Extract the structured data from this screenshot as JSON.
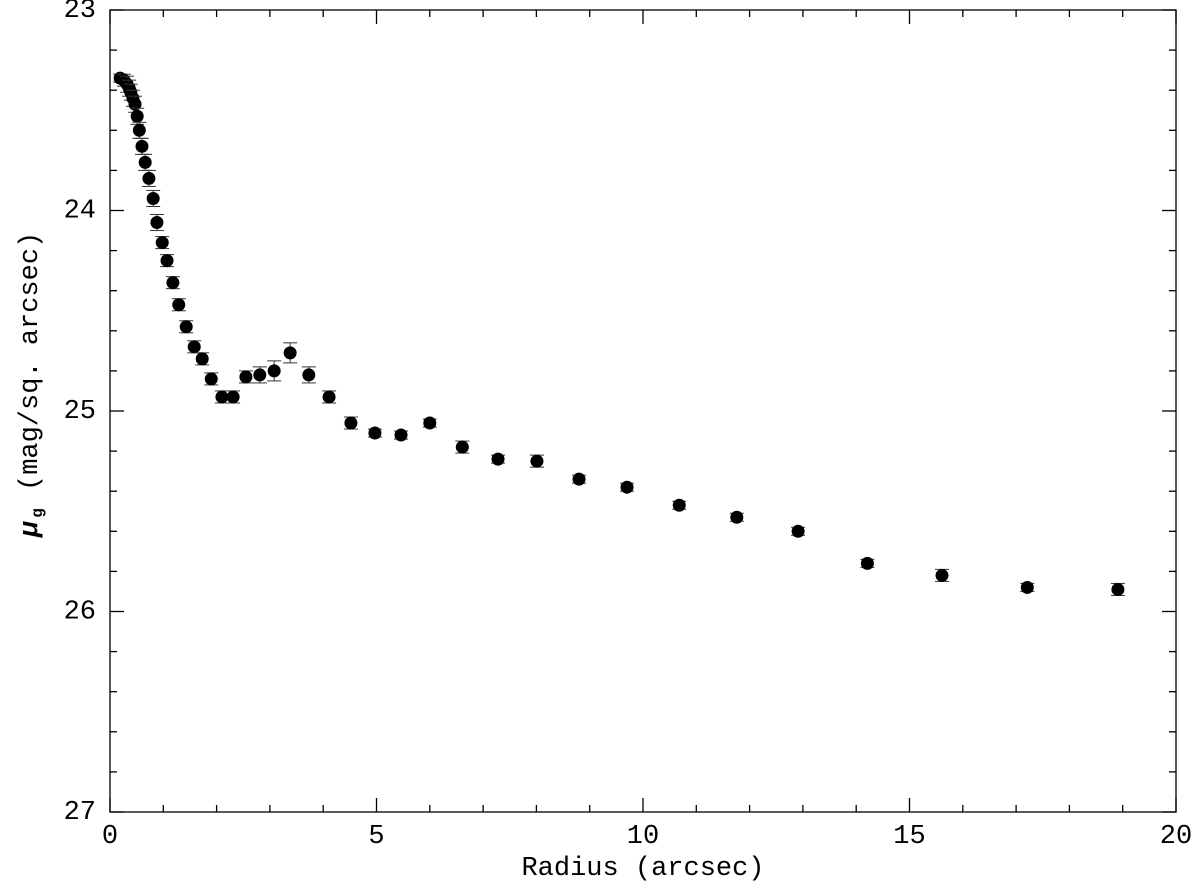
{
  "chart_data": {
    "type": "scatter",
    "xlabel": "Radius (arcsec)",
    "ylabel": {
      "symbol": "μ",
      "subscript": "g",
      "unit": "(mag/sq. arcsec)"
    },
    "xlim": [
      0,
      20
    ],
    "ylim": [
      27,
      23
    ],
    "xticks": [
      0,
      5,
      10,
      15,
      20
    ],
    "yticks": [
      23,
      24,
      25,
      26,
      27
    ],
    "xminor_ticks": [
      1,
      2,
      3,
      4,
      6,
      7,
      8,
      9,
      11,
      12,
      13,
      14,
      16,
      17,
      18,
      19
    ],
    "yminor_ticks": [
      23.2,
      23.4,
      23.6,
      23.8,
      24.2,
      24.4,
      24.6,
      24.8,
      25.2,
      25.4,
      25.6,
      25.8,
      26.2,
      26.4,
      26.6,
      26.8
    ],
    "color": "#000000",
    "series": [
      {
        "x": [
          0.19,
          0.26,
          0.32,
          0.36,
          0.39,
          0.43,
          0.47,
          0.51,
          0.55,
          0.6,
          0.66,
          0.73,
          0.81,
          0.88,
          0.98,
          1.07,
          1.18,
          1.29,
          1.43,
          1.58,
          1.73,
          1.9,
          2.1,
          2.31,
          2.55,
          2.81,
          3.08,
          3.38,
          3.73,
          4.11,
          4.52,
          4.97,
          5.46,
          6.0,
          6.61,
          7.28,
          8.01,
          8.8,
          9.7,
          10.68,
          11.76,
          12.91,
          14.21,
          15.61,
          17.21,
          18.91
        ],
        "values": [
          23.34,
          23.35,
          23.37,
          23.39,
          23.41,
          23.44,
          23.47,
          23.53,
          23.6,
          23.68,
          23.76,
          23.84,
          23.94,
          24.06,
          24.16,
          24.25,
          24.36,
          24.47,
          24.58,
          24.68,
          24.74,
          24.84,
          24.93,
          24.93,
          24.83,
          24.82,
          24.8,
          24.71,
          24.82,
          24.93,
          25.06,
          25.11,
          25.12,
          25.06,
          25.18,
          25.24,
          25.25,
          25.34,
          25.38,
          25.47,
          25.53,
          25.6,
          25.76,
          25.82,
          25.88,
          25.89
        ],
        "errors": [
          0.02,
          0.03,
          0.04,
          0.04,
          0.04,
          0.04,
          0.04,
          0.04,
          0.04,
          0.04,
          0.04,
          0.04,
          0.04,
          0.04,
          0.03,
          0.03,
          0.03,
          0.03,
          0.03,
          0.03,
          0.03,
          0.03,
          0.03,
          0.03,
          0.03,
          0.04,
          0.05,
          0.05,
          0.04,
          0.03,
          0.03,
          0.02,
          0.02,
          0.02,
          0.03,
          0.02,
          0.03,
          0.02,
          0.02,
          0.02,
          0.02,
          0.02,
          0.02,
          0.03,
          0.02,
          0.03
        ]
      }
    ]
  }
}
